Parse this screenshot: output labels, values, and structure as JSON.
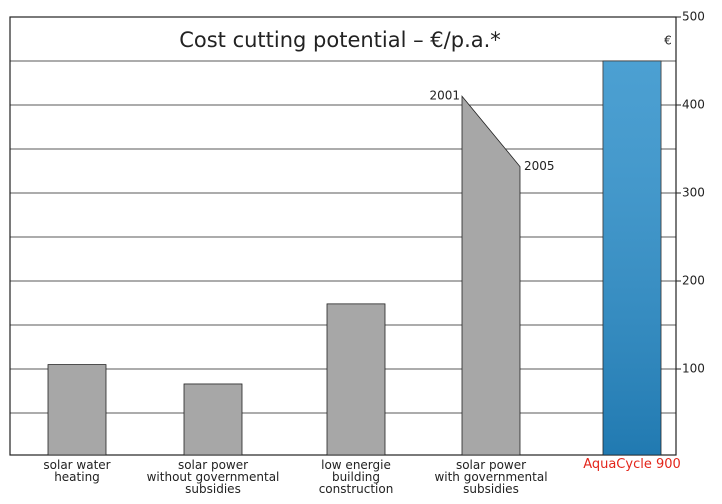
{
  "chart_data": {
    "type": "bar",
    "title": "Cost cutting potential – €/p.a.*",
    "unit": "€",
    "categories": [
      "solar water\nheating",
      "solar power\nwithout governmental\nsubsidies",
      "low energie\nbuilding\nconstruction",
      "solar power\nwith governmental\nsubsidies",
      "AquaCycle 900"
    ],
    "series": [
      {
        "name": "2001",
        "values": [
          105,
          83,
          174,
          410,
          450
        ]
      },
      {
        "name": "2005",
        "values": [
          null,
          null,
          null,
          330,
          null
        ]
      }
    ],
    "colors": [
      "#a7a7a7",
      "#a7a7a7",
      "#a7a7a7",
      "#a7a7a7",
      "#2c8fca"
    ],
    "label_colors": [
      "#222222",
      "#222222",
      "#222222",
      "#222222",
      "#e3261b"
    ],
    "ylim": [
      0,
      500
    ],
    "yticks": [
      100,
      200,
      300,
      400,
      500
    ],
    "grid_lines": [
      50,
      100,
      150,
      200,
      250,
      300,
      350,
      400,
      450
    ]
  }
}
